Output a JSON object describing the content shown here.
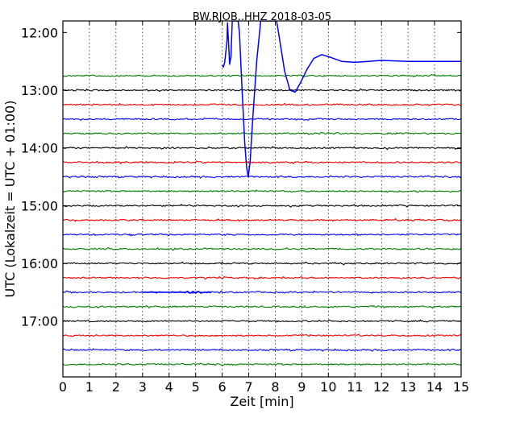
{
  "chart_data": {
    "type": "line",
    "title": "BW.RJOB..HHZ 2018-03-05",
    "xlabel": "Zeit  [min]",
    "ylabel": "UTC (Lokalzeit = UTC + 01:00)",
    "xlim": [
      0,
      15
    ],
    "x_ticks": [
      0,
      1,
      2,
      3,
      4,
      5,
      6,
      7,
      8,
      9,
      10,
      11,
      12,
      13,
      14,
      15
    ],
    "y_ticks": [
      "12:00",
      "13:00",
      "14:00",
      "15:00",
      "16:00",
      "17:00"
    ],
    "ylim": [
      "11:48",
      "17:58"
    ],
    "grid": "dotted vertical",
    "colors": [
      "#008000",
      "#000000",
      "#ff0000",
      "#0000ff"
    ],
    "traces": [
      {
        "start": "12:45",
        "color": "#008000"
      },
      {
        "start": "13:00",
        "color": "#000000"
      },
      {
        "start": "13:15",
        "color": "#ff0000"
      },
      {
        "start": "13:30",
        "color": "#0000ff"
      },
      {
        "start": "13:45",
        "color": "#008000"
      },
      {
        "start": "14:00",
        "color": "#000000"
      },
      {
        "start": "14:15",
        "color": "#ff0000"
      },
      {
        "start": "14:30",
        "color": "#0000ff"
      },
      {
        "start": "14:45",
        "color": "#008000"
      },
      {
        "start": "15:00",
        "color": "#000000"
      },
      {
        "start": "15:15",
        "color": "#ff0000"
      },
      {
        "start": "15:30",
        "color": "#0000ff"
      },
      {
        "start": "15:45",
        "color": "#008000"
      },
      {
        "start": "16:00",
        "color": "#000000"
      },
      {
        "start": "16:15",
        "color": "#ff0000"
      },
      {
        "start": "16:30",
        "color": "#0000ff"
      },
      {
        "start": "16:45",
        "color": "#008000"
      },
      {
        "start": "17:00",
        "color": "#000000"
      },
      {
        "start": "17:15",
        "color": "#ff0000"
      },
      {
        "start": "17:30",
        "color": "#0000ff"
      },
      {
        "start": "17:45",
        "color": "#008000"
      }
    ],
    "events": [
      {
        "trace_start": "12:30",
        "color": "#0000ff",
        "points": [
          [
            6.0,
            "12:34"
          ],
          [
            6.05,
            "12:36"
          ],
          [
            6.1,
            "12:30"
          ],
          [
            6.18,
            "12:09"
          ],
          [
            6.2,
            "11:50"
          ],
          [
            6.25,
            "12:15"
          ],
          [
            6.28,
            "12:33"
          ],
          [
            6.33,
            "12:25"
          ],
          [
            6.38,
            "11:48"
          ],
          [
            6.6,
            "11:48"
          ],
          [
            6.65,
            "12:00"
          ],
          [
            6.75,
            "13:00"
          ],
          [
            6.85,
            "13:55"
          ],
          [
            6.92,
            "14:20"
          ],
          [
            6.98,
            "14:30"
          ],
          [
            7.05,
            "14:15"
          ],
          [
            7.15,
            "13:30"
          ],
          [
            7.3,
            "12:30"
          ],
          [
            7.45,
            "11:48"
          ],
          [
            8.05,
            "11:48"
          ],
          [
            8.15,
            "12:05"
          ],
          [
            8.35,
            "12:40"
          ],
          [
            8.55,
            "13:00"
          ],
          [
            8.75,
            "13:02"
          ],
          [
            8.95,
            "12:52"
          ],
          [
            9.2,
            "12:38"
          ],
          [
            9.45,
            "12:27"
          ],
          [
            9.75,
            "12:23"
          ],
          [
            10.1,
            "12:26"
          ],
          [
            10.5,
            "12:30"
          ],
          [
            11.0,
            "12:31"
          ],
          [
            11.5,
            "12:30"
          ],
          [
            12.0,
            "12:29"
          ],
          [
            13.0,
            "12:30"
          ],
          [
            14.0,
            "12:30"
          ],
          [
            15.0,
            "12:30"
          ]
        ]
      },
      {
        "trace_start": "16:30",
        "color": "#0000ff",
        "points": [
          [
            3.0,
            "16:30"
          ],
          [
            3.5,
            "16:30"
          ],
          [
            4.6,
            "16:30"
          ],
          [
            4.7,
            "16:29"
          ],
          [
            4.8,
            "16:31"
          ],
          [
            4.9,
            "16:29"
          ],
          [
            5.0,
            "16:31"
          ],
          [
            5.1,
            "16:29"
          ],
          [
            5.2,
            "16:31"
          ],
          [
            5.3,
            "16:30"
          ],
          [
            5.6,
            "16:30"
          ]
        ]
      }
    ]
  }
}
